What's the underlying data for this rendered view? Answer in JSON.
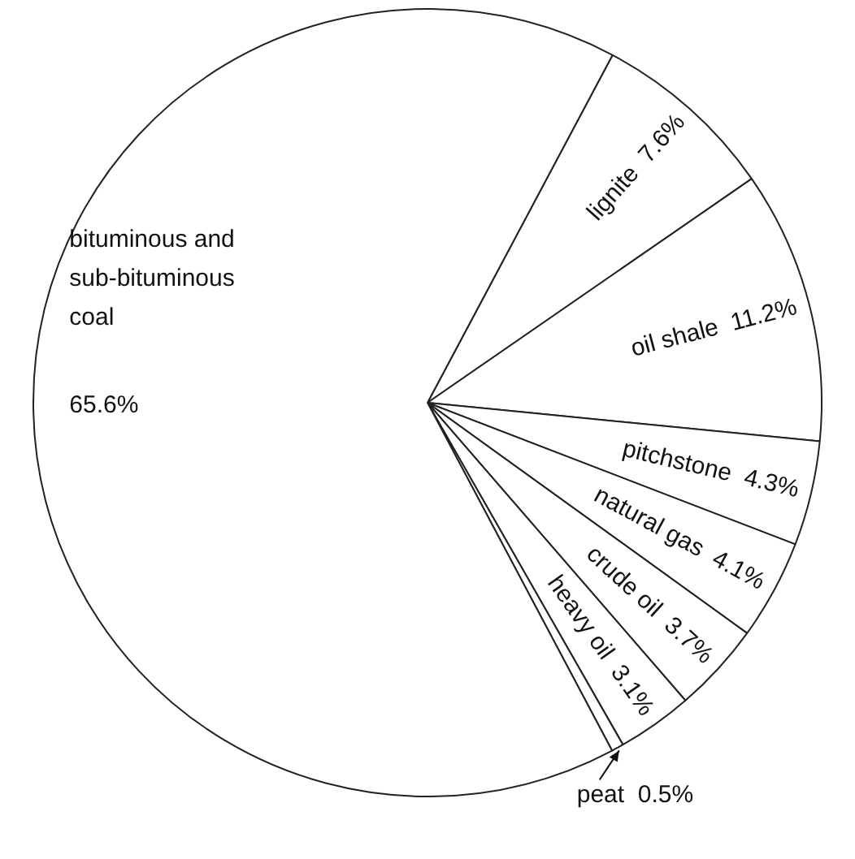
{
  "chart_data": {
    "type": "pie",
    "categories": [
      "lignite",
      "oil shale",
      "pitchstone",
      "natural gas",
      "crude oil",
      "heavy oil",
      "peat",
      "bituminous and sub-bituminous coal"
    ],
    "values": [
      7.6,
      11.2,
      4.3,
      4.1,
      3.7,
      3.1,
      0.5,
      65.6
    ],
    "colors": [
      "#ffffff",
      "#ffffff",
      "#ffffff",
      "#ffffff",
      "#ffffff",
      "#ffffff",
      "#ffffff",
      "#ffffff"
    ],
    "value_labels": [
      "7.6%",
      "11.2%",
      "4.3%",
      "4.1%",
      "3.7%",
      "3.1%",
      "0.5%",
      "65.6%"
    ],
    "legend": false
  }
}
